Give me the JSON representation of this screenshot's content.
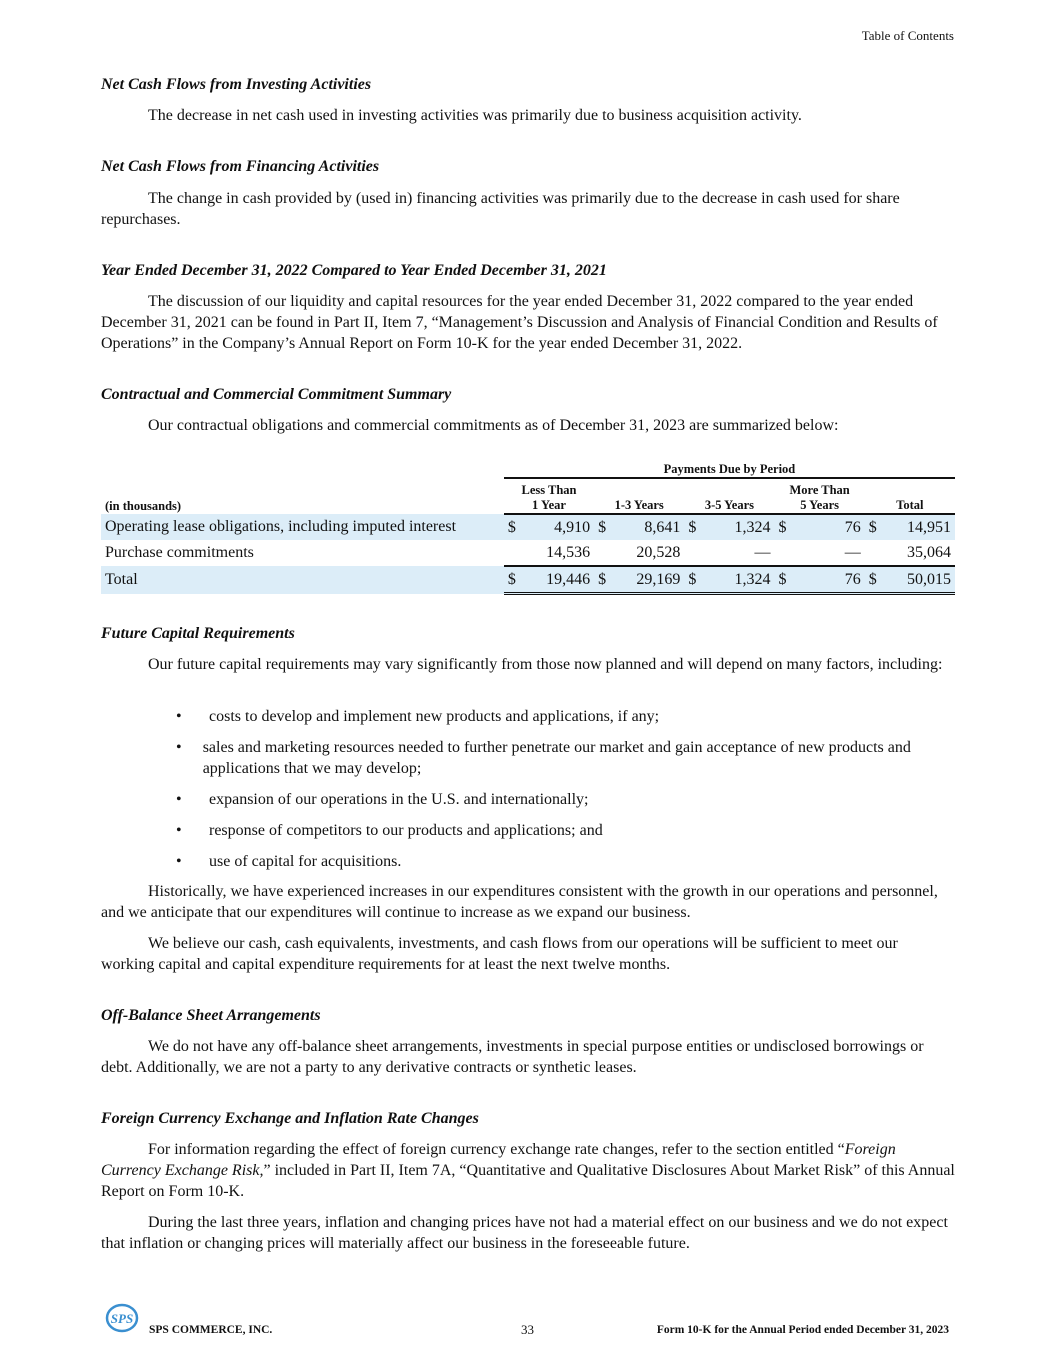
{
  "header": {
    "toc": "Table of Contents"
  },
  "sections": {
    "investing": {
      "title": "Net Cash Flows from Investing Activities",
      "text": "The decrease in net cash used in investing activities was primarily due to business acquisition activity."
    },
    "financing": {
      "title": "Net Cash Flows from Financing Activities",
      "text": "The change in cash provided by (used in) financing activities was primarily due to the decrease in cash used for share repurchases."
    },
    "year2022": {
      "title": "Year Ended December 31, 2022 Compared to Year Ended December 31, 2021",
      "text": "The discussion of our liquidity and capital resources for the year ended December 31, 2022 compared to the year ended December 31, 2021 can be found in Part II, Item 7, “Management’s Discussion and Analysis of Financial Condition and Results of Operations” in the Company’s Annual Report on Form 10-K for the year ended December 31, 2022."
    },
    "contractual": {
      "title": "Contractual and Commercial Commitment Summary",
      "text": "Our contractual obligations and commercial commitments as of December 31, 2023 are summarized below:"
    },
    "future": {
      "title": "Future Capital Requirements",
      "text": "Our future capital requirements may vary significantly from those now planned and will depend on many factors, including:",
      "bullets": [
        "costs to develop and implement new products and applications, if any;",
        "sales and marketing resources needed to further penetrate our market and gain acceptance of new products and applications that we may develop;",
        "expansion of our operations in the U.S. and internationally;",
        "response of competitors to our products and applications; and",
        "use of capital for acquisitions."
      ],
      "p2": "Historically, we have experienced increases in our expenditures consistent with the growth in our operations and personnel, and we anticipate that our expenditures will continue to increase as we expand our business.",
      "p3": "We believe our cash, cash equivalents, investments, and cash flows from our operations will be sufficient to meet our working capital and capital expenditure requirements for at least the next twelve months."
    },
    "offbalance": {
      "title": "Off-Balance Sheet Arrangements",
      "text": "We do not have any off-balance sheet arrangements, investments in special purpose entities or undisclosed borrowings or debt. Additionally, we are not a party to any derivative contracts or synthetic leases."
    },
    "fx": {
      "title": "Foreign Currency Exchange and Inflation Rate Changes",
      "p1a": "For information regarding the effect of foreign currency exchange rate changes, refer to the section entitled “",
      "p1b": "Foreign Currency Exchange Risk,",
      "p1c": "” included in Part II, Item 7A, “Quantitative and Qualitative Disclosures About Market Risk” of this Annual Report on Form 10-K.",
      "p2": "During the last three years, inflation and changing prices have not had a material effect on our business and we do not expect that inflation or changing prices will materially affect our business in the foreseeable future."
    }
  },
  "table": {
    "group_header": "Payments Due by Period",
    "unit_label": "(in thousands)",
    "columns": [
      [
        "Less Than",
        "1 Year"
      ],
      [
        "1-3 Years"
      ],
      [
        "3-5 Years"
      ],
      [
        "More Than",
        "5 Years"
      ],
      [
        "Total"
      ]
    ],
    "rows": [
      {
        "label": "Operating lease obligations, including imputed interest",
        "dollar": "$",
        "values": [
          "4,910",
          "8,641",
          "1,324",
          "76",
          "14,951"
        ]
      },
      {
        "label": "Purchase commitments",
        "dollar": "",
        "values": [
          "14,536",
          "20,528",
          "—",
          "—",
          "35,064"
        ]
      },
      {
        "label": "Total",
        "dollar": "$",
        "values": [
          "19,446",
          "29,169",
          "1,324",
          "76",
          "50,015"
        ]
      }
    ]
  },
  "footer": {
    "company": "SPS COMMERCE, INC.",
    "page": "33",
    "form": "Form 10-K for the Annual Period ended December 31, 2023",
    "logo_text": "SPS"
  },
  "colors": {
    "band": "#dcedf8",
    "logo": "#3a8fd0"
  }
}
